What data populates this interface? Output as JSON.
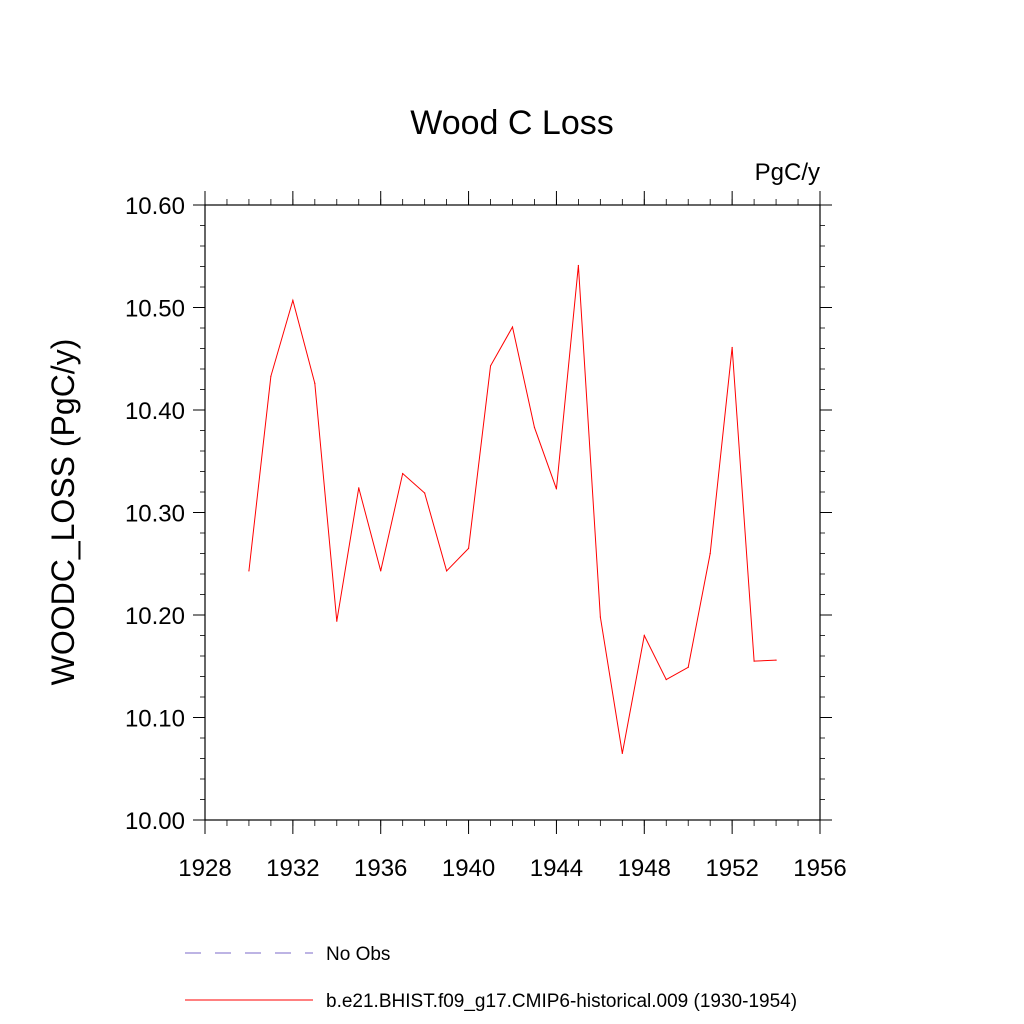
{
  "chart_data": {
    "type": "line",
    "title": "Wood C Loss",
    "units": "PgC/y",
    "xlabel": "",
    "ylabel": "WOODC_LOSS  (PgC/y)",
    "xlim": [
      1928,
      1956
    ],
    "ylim": [
      10.0,
      10.6
    ],
    "x_ticks": [
      1928,
      1932,
      1936,
      1940,
      1944,
      1948,
      1952,
      1956
    ],
    "x_tick_labels": [
      "1928",
      "1932",
      "1936",
      "1940",
      "1944",
      "1948",
      "1952",
      "1956"
    ],
    "y_ticks": [
      10.0,
      10.1,
      10.2,
      10.3,
      10.4,
      10.5,
      10.6
    ],
    "y_tick_labels": [
      "10.00",
      "10.10",
      "10.20",
      "10.30",
      "10.40",
      "10.50",
      "10.60"
    ],
    "grid": false,
    "legend_position": "bottom",
    "series": [
      {
        "name": "No Obs",
        "color": "#7b68c8",
        "dash": "dashed",
        "x": [],
        "values": []
      },
      {
        "name": "b.e21.BHIST.f09_g17.CMIP6-historical.009 (1930-1954)",
        "color": "#ff0000",
        "dash": "solid",
        "x": [
          1930,
          1931,
          1932,
          1933,
          1934,
          1935,
          1936,
          1937,
          1938,
          1939,
          1940,
          1941,
          1942,
          1943,
          1944,
          1945,
          1946,
          1947,
          1948,
          1949,
          1950,
          1951,
          1952,
          1953,
          1954
        ],
        "values": [
          10.243,
          10.433,
          10.507,
          10.426,
          10.194,
          10.324,
          10.243,
          10.338,
          10.319,
          10.243,
          10.265,
          10.443,
          10.481,
          10.383,
          10.323,
          10.541,
          10.198,
          10.065,
          10.18,
          10.137,
          10.149,
          10.26,
          10.461,
          10.155,
          10.156
        ]
      }
    ]
  }
}
